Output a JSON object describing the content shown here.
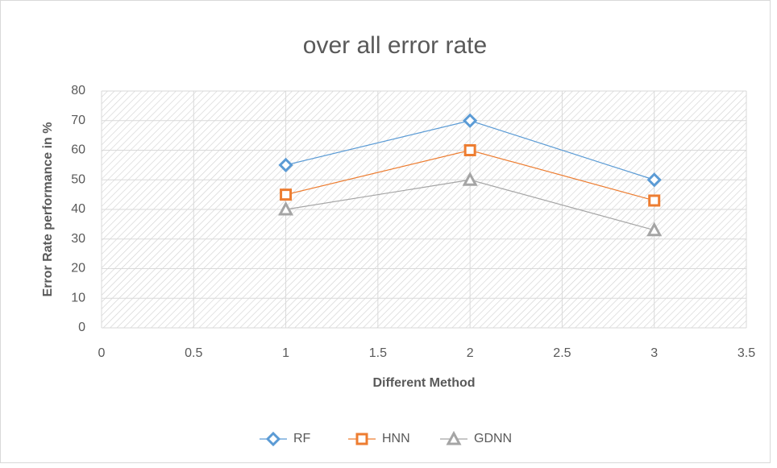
{
  "chart_data": {
    "type": "line",
    "title": "over all error rate",
    "xlabel": "Different Method",
    "ylabel": "Error Rate performance in %",
    "x": [
      1,
      2,
      3
    ],
    "series": [
      {
        "name": "RF",
        "color": "#5b9bd5",
        "marker": "diamond",
        "values": [
          55,
          70,
          50
        ]
      },
      {
        "name": "HNN",
        "color": "#ed7d31",
        "marker": "square",
        "values": [
          45,
          60,
          43
        ]
      },
      {
        "name": "GDNN",
        "color": "#a5a5a5",
        "marker": "triangle",
        "values": [
          40,
          50,
          33
        ]
      }
    ],
    "xlim": [
      0,
      3.5
    ],
    "xticks": [
      0,
      0.5,
      1,
      1.5,
      2,
      2.5,
      3,
      3.5
    ],
    "ylim": [
      0,
      80
    ],
    "yticks": [
      0,
      10,
      20,
      30,
      40,
      50,
      60,
      70,
      80
    ],
    "grid": true,
    "legend": "bottom"
  }
}
